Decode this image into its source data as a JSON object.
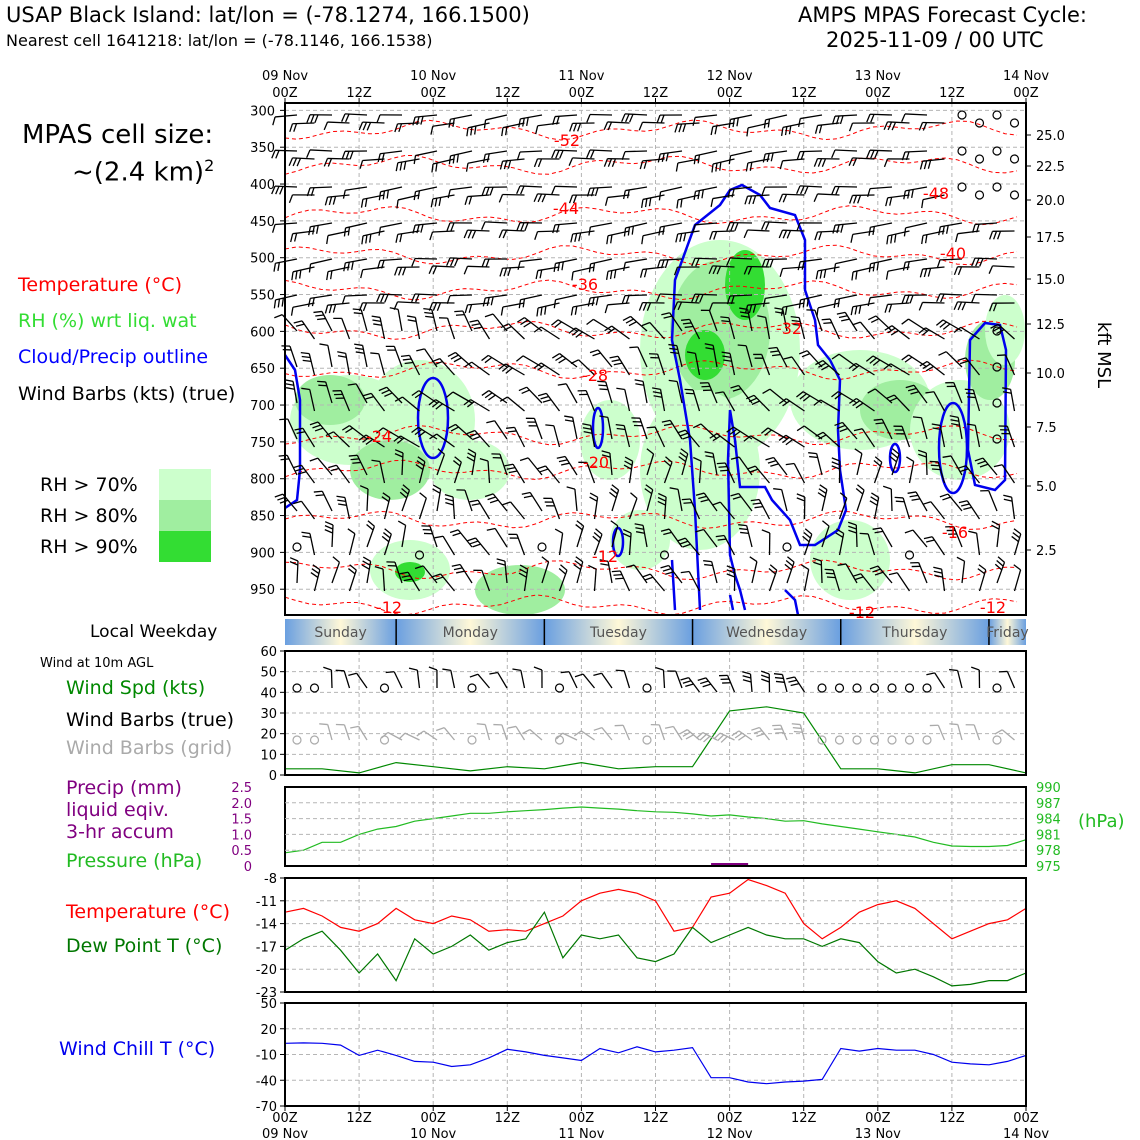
{
  "header": {
    "station": "USAP Black Island: lat/lon = (-78.1274, 166.1500)",
    "cell": "Nearest cell 1641218: lat/lon = (-78.1146, 166.1538)",
    "cycle_line1": "AMPS MPAS Forecast Cycle:",
    "cycle_line2": "2025-11-09 / 00 UTC"
  },
  "left_panel": {
    "cell_size_line1": "MPAS cell size:",
    "cell_size_line2": "~(2.4 km)",
    "cell_size_exp": "2",
    "legend_temperature": "Temperature (°C)",
    "legend_rh": "RH (%) wrt liq. wat",
    "legend_cloud": "Cloud/Precip outline",
    "legend_wind": "Wind Barbs (kts) (true)",
    "rh70": "RH > 70%",
    "rh80": "RH > 80%",
    "rh90": "RH > 90%",
    "local_weekday": "Local Weekday",
    "wind_10m": "Wind at 10m AGL",
    "wind_spd": "Wind Spd (kts)",
    "wind_barbs_true": "Wind Barbs (true)",
    "wind_barbs_grid": "Wind Barbs (grid)",
    "precip1": "Precip (mm)",
    "precip2": "liquid eqiv.",
    "precip3": "3-hr accum",
    "pressure": "Pressure (hPa)",
    "temp2": "Temperature (°C)",
    "dewpoint": "Dew Point T (°C)",
    "windchill": "Wind Chill T (°C)"
  },
  "colors": {
    "temperature": "#ff0000",
    "rh": "#33dd33",
    "cloud": "#0000ff",
    "pressure": "#22bb22",
    "dewpoint": "#007700",
    "windchill": "#0000ee",
    "precip": "#800080",
    "rh70": "#ccffcc",
    "rh80": "#a0eea0",
    "rh90": "#33dd33"
  },
  "time_axis": {
    "top_dates": [
      "09 Nov",
      "10 Nov",
      "11 Nov",
      "12 Nov",
      "13 Nov",
      "14 Nov"
    ],
    "top_hours": [
      "00Z",
      "12Z",
      "00Z",
      "12Z",
      "00Z",
      "12Z",
      "00Z",
      "12Z",
      "00Z",
      "12Z",
      "00Z"
    ],
    "weekdays": [
      "Sunday",
      "Monday",
      "Tuesday",
      "Wednesday",
      "Thursday",
      "Friday"
    ]
  },
  "chart_data": [
    {
      "type": "heatmap",
      "title": "",
      "pressure_levels_hpa": [
        "300",
        "350",
        "400",
        "450",
        "500",
        "550",
        "600",
        "650",
        "700",
        "750",
        "800",
        "850",
        "900",
        "950"
      ],
      "height_kft": [
        "25.0",
        "22.5",
        "20.0",
        "17.5",
        "15.0",
        "12.5",
        "10.0",
        "7.5",
        "5.0",
        "2.5"
      ],
      "ylabel_right": "kft MSL",
      "temperature_contour_labels": [
        "-52",
        "-44",
        "-36",
        "-48",
        "-40",
        "-32",
        "-28",
        "-24",
        "-20",
        "-12",
        "-16",
        "-12",
        "-12",
        "-12"
      ]
    },
    {
      "type": "line",
      "title": "Wind Spd (kts)",
      "ylim": [
        0,
        60
      ],
      "yticks": [
        "0",
        "10",
        "20",
        "30",
        "40",
        "50",
        "60"
      ],
      "hours": [
        0,
        6,
        12,
        18,
        24,
        30,
        36,
        42,
        48,
        54,
        60,
        66,
        72,
        78,
        84,
        90,
        96,
        102,
        108,
        114,
        120
      ],
      "values": [
        3,
        3,
        1,
        6,
        4,
        2,
        4,
        3,
        6,
        3,
        4,
        4,
        31,
        33,
        30,
        3,
        3,
        1,
        5,
        5,
        1
      ]
    },
    {
      "type": "line",
      "title": "Pressure (hPa)",
      "ylim_pressure": [
        975,
        990
      ],
      "ylim_precip": [
        0,
        2.5
      ],
      "precip_ticks": [
        "2.5",
        "2.0",
        "1.5",
        "1.0",
        "0.5",
        "0"
      ],
      "pressure_ticks": [
        "990",
        "987",
        "984",
        "981",
        "978",
        "975"
      ],
      "ylabel_right": "(hPa)",
      "hours": [
        0,
        3,
        6,
        9,
        12,
        15,
        18,
        21,
        24,
        27,
        30,
        33,
        36,
        39,
        42,
        45,
        48,
        51,
        54,
        57,
        60,
        63,
        66,
        69,
        72,
        75,
        78,
        81,
        84,
        87,
        90,
        93,
        96,
        99,
        102,
        105,
        108,
        111,
        114,
        117,
        120
      ],
      "values": [
        977.5,
        978,
        979.5,
        979.5,
        981,
        982,
        982.5,
        983.5,
        984,
        984.5,
        985,
        985,
        985.3,
        985.5,
        985.7,
        986,
        986.2,
        986,
        985.8,
        985.5,
        985.3,
        985.2,
        984.9,
        984.5,
        984.7,
        984.3,
        984,
        983.5,
        983.6,
        983,
        982.5,
        982,
        981.5,
        981,
        980.5,
        979.5,
        978.8,
        978.7,
        978.7,
        978.9,
        980
      ]
    },
    {
      "type": "line",
      "title": "Temperature (°C)",
      "ylim": [
        -23,
        -8
      ],
      "yticks": [
        "-8",
        "-11",
        "-14",
        "-17",
        "-20",
        "-23"
      ],
      "hours": [
        0,
        3,
        6,
        9,
        12,
        15,
        18,
        21,
        24,
        27,
        30,
        33,
        36,
        39,
        42,
        45,
        48,
        51,
        54,
        57,
        60,
        63,
        66,
        69,
        72,
        75,
        78,
        81,
        84,
        87,
        90,
        93,
        96,
        99,
        102,
        105,
        108,
        111,
        114,
        117,
        120
      ],
      "series": [
        {
          "name": "Temperature (°C)",
          "values": [
            -12.5,
            -12,
            -13,
            -14.5,
            -15,
            -14,
            -12,
            -13.5,
            -14,
            -13,
            -13.5,
            -15,
            -14.8,
            -15,
            -14,
            -13,
            -11,
            -10,
            -9.5,
            -10,
            -11,
            -15,
            -14.5,
            -10.5,
            -10,
            -8.2,
            -9,
            -10,
            -14,
            -16,
            -14.5,
            -12.5,
            -11.5,
            -11,
            -12,
            -14,
            -16,
            -15,
            -14,
            -13.5,
            -12
          ]
        },
        {
          "name": "Dew Point T (°C)",
          "values": [
            -17.5,
            -16,
            -15,
            -17.5,
            -20.5,
            -18,
            -21.5,
            -16,
            -18,
            -17,
            -15.5,
            -17.5,
            -16.5,
            -16,
            -12.5,
            -18.5,
            -15.5,
            -16,
            -15.5,
            -18.5,
            -19,
            -18,
            -14.5,
            -16.5,
            -15.5,
            -14.5,
            -15.5,
            -16,
            -16,
            -17,
            -16,
            -16.5,
            -19,
            -20.5,
            -20,
            -21,
            -22.2,
            -22,
            -21.5,
            -21.5,
            -20.5
          ]
        }
      ]
    },
    {
      "type": "line",
      "title": "Wind Chill T (°C)",
      "ylim": [
        -70,
        50
      ],
      "yticks": [
        "50",
        "20",
        "-10",
        "-40",
        "-70"
      ],
      "hours": [
        0,
        3,
        6,
        9,
        12,
        15,
        18,
        21,
        24,
        27,
        30,
        33,
        36,
        39,
        42,
        45,
        48,
        51,
        54,
        57,
        60,
        63,
        66,
        69,
        72,
        75,
        78,
        81,
        84,
        87,
        90,
        93,
        96,
        99,
        102,
        105,
        108,
        111,
        114,
        117,
        120
      ],
      "values": [
        3,
        3.5,
        3,
        1,
        -11,
        -5,
        -11,
        -18,
        -19,
        -24,
        -22,
        -14,
        -4,
        -7,
        -11,
        -14,
        -17,
        -3,
        -8,
        -1,
        -7,
        -5,
        -2,
        -37,
        -37,
        -42,
        -44,
        -42,
        -41,
        -39,
        -3,
        -6,
        -3,
        -5,
        -5,
        -10,
        -19,
        -21,
        -22,
        -18,
        -11
      ]
    }
  ],
  "bottom_axis": {
    "hours": [
      "00Z",
      "12Z",
      "00Z",
      "12Z",
      "00Z",
      "12Z",
      "00Z",
      "12Z",
      "00Z",
      "12Z",
      "00Z"
    ],
    "dates": [
      "09 Nov",
      "10 Nov",
      "11 Nov",
      "12 Nov",
      "13 Nov",
      "14 Nov"
    ]
  }
}
